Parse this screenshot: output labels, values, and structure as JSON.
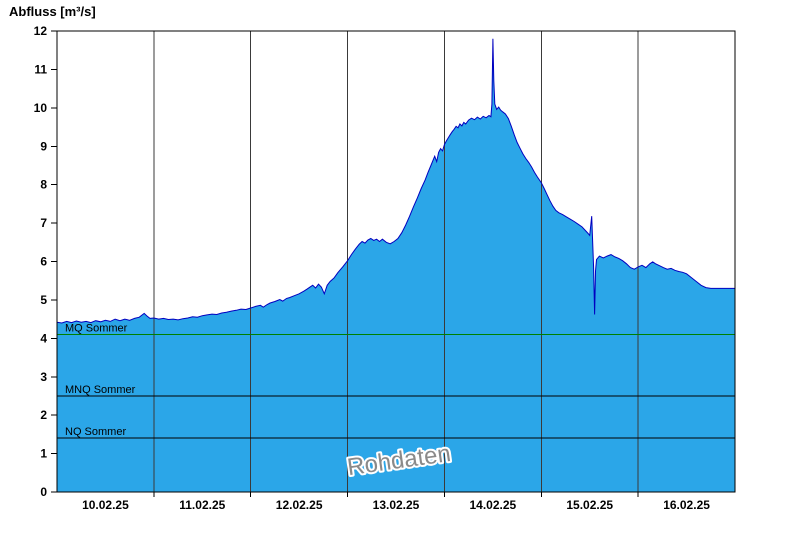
{
  "title": "Abfluss [m³/s]",
  "watermark": "Rohdaten",
  "colors": {
    "area_fill": "#2BA6E8",
    "area_stroke": "#0000C0",
    "grid": "#3a3a3a",
    "axis": "#000000",
    "mq_green": "#008000",
    "ref_black": "#000000",
    "watermark_fill": "#8a8a8a",
    "watermark_halo": "#ffffff"
  },
  "chart_data": {
    "type": "area",
    "title": "Abfluss [m³/s]",
    "ylabel": "Abfluss [m³/s]",
    "xlabel": "",
    "ylim": [
      0,
      12
    ],
    "y_ticks": [
      0,
      1,
      2,
      3,
      4,
      5,
      6,
      7,
      8,
      9,
      10,
      11,
      12
    ],
    "x_domain_days": [
      0,
      7
    ],
    "grid_days": [
      1,
      2,
      3,
      4,
      5,
      6
    ],
    "x_day_labels": [
      "10.02.25",
      "11.02.25",
      "12.02.25",
      "13.02.25",
      "14.02.25",
      "15.02.25",
      "16.02.25"
    ],
    "legend_position": "none",
    "grid": "vertical-only",
    "reference_lines": [
      {
        "label": "MQ Sommer",
        "value": 4.1,
        "color": "#008000"
      },
      {
        "label": "MNQ Sommer",
        "value": 2.5,
        "color": "#000000"
      },
      {
        "label": "NQ Sommer",
        "value": 1.4,
        "color": "#000000"
      }
    ],
    "series": [
      {
        "name": "Abfluss Rohdaten",
        "unit": "m³/s",
        "points": [
          [
            0.0,
            4.42
          ],
          [
            0.05,
            4.4
          ],
          [
            0.1,
            4.44
          ],
          [
            0.15,
            4.41
          ],
          [
            0.2,
            4.45
          ],
          [
            0.25,
            4.42
          ],
          [
            0.3,
            4.44
          ],
          [
            0.35,
            4.41
          ],
          [
            0.4,
            4.46
          ],
          [
            0.45,
            4.43
          ],
          [
            0.5,
            4.47
          ],
          [
            0.55,
            4.44
          ],
          [
            0.6,
            4.5
          ],
          [
            0.65,
            4.46
          ],
          [
            0.7,
            4.5
          ],
          [
            0.75,
            4.47
          ],
          [
            0.8,
            4.52
          ],
          [
            0.85,
            4.55
          ],
          [
            0.9,
            4.65
          ],
          [
            0.93,
            4.58
          ],
          [
            0.96,
            4.52
          ],
          [
            1.0,
            4.53
          ],
          [
            1.05,
            4.5
          ],
          [
            1.1,
            4.52
          ],
          [
            1.15,
            4.49
          ],
          [
            1.2,
            4.5
          ],
          [
            1.25,
            4.48
          ],
          [
            1.3,
            4.51
          ],
          [
            1.35,
            4.53
          ],
          [
            1.4,
            4.56
          ],
          [
            1.45,
            4.55
          ],
          [
            1.5,
            4.59
          ],
          [
            1.55,
            4.61
          ],
          [
            1.6,
            4.63
          ],
          [
            1.65,
            4.62
          ],
          [
            1.7,
            4.66
          ],
          [
            1.75,
            4.68
          ],
          [
            1.8,
            4.71
          ],
          [
            1.85,
            4.73
          ],
          [
            1.9,
            4.76
          ],
          [
            1.95,
            4.75
          ],
          [
            2.0,
            4.79
          ],
          [
            2.05,
            4.83
          ],
          [
            2.1,
            4.86
          ],
          [
            2.13,
            4.81
          ],
          [
            2.17,
            4.88
          ],
          [
            2.2,
            4.92
          ],
          [
            2.25,
            4.96
          ],
          [
            2.3,
            5.01
          ],
          [
            2.33,
            4.97
          ],
          [
            2.37,
            5.04
          ],
          [
            2.4,
            5.06
          ],
          [
            2.45,
            5.11
          ],
          [
            2.5,
            5.16
          ],
          [
            2.55,
            5.23
          ],
          [
            2.58,
            5.28
          ],
          [
            2.61,
            5.33
          ],
          [
            2.64,
            5.38
          ],
          [
            2.67,
            5.31
          ],
          [
            2.7,
            5.41
          ],
          [
            2.73,
            5.33
          ],
          [
            2.76,
            5.16
          ],
          [
            2.79,
            5.38
          ],
          [
            2.82,
            5.48
          ],
          [
            2.86,
            5.57
          ],
          [
            2.9,
            5.71
          ],
          [
            2.95,
            5.86
          ],
          [
            3.0,
            6.02
          ],
          [
            3.04,
            6.18
          ],
          [
            3.08,
            6.32
          ],
          [
            3.12,
            6.45
          ],
          [
            3.15,
            6.52
          ],
          [
            3.18,
            6.48
          ],
          [
            3.21,
            6.56
          ],
          [
            3.24,
            6.6
          ],
          [
            3.27,
            6.55
          ],
          [
            3.3,
            6.58
          ],
          [
            3.33,
            6.52
          ],
          [
            3.36,
            6.58
          ],
          [
            3.4,
            6.5
          ],
          [
            3.44,
            6.46
          ],
          [
            3.48,
            6.52
          ],
          [
            3.52,
            6.6
          ],
          [
            3.56,
            6.75
          ],
          [
            3.6,
            6.95
          ],
          [
            3.64,
            7.18
          ],
          [
            3.68,
            7.42
          ],
          [
            3.72,
            7.65
          ],
          [
            3.76,
            7.9
          ],
          [
            3.8,
            8.12
          ],
          [
            3.83,
            8.32
          ],
          [
            3.86,
            8.5
          ],
          [
            3.88,
            8.62
          ],
          [
            3.9,
            8.74
          ],
          [
            3.92,
            8.6
          ],
          [
            3.94,
            8.84
          ],
          [
            3.96,
            8.94
          ],
          [
            3.98,
            8.88
          ],
          [
            4.0,
            9.04
          ],
          [
            4.02,
            9.14
          ],
          [
            4.04,
            9.22
          ],
          [
            4.06,
            9.3
          ],
          [
            4.08,
            9.38
          ],
          [
            4.1,
            9.44
          ],
          [
            4.12,
            9.52
          ],
          [
            4.14,
            9.48
          ],
          [
            4.16,
            9.58
          ],
          [
            4.18,
            9.53
          ],
          [
            4.2,
            9.62
          ],
          [
            4.22,
            9.58
          ],
          [
            4.25,
            9.68
          ],
          [
            4.28,
            9.73
          ],
          [
            4.31,
            9.69
          ],
          [
            4.34,
            9.76
          ],
          [
            4.37,
            9.71
          ],
          [
            4.4,
            9.78
          ],
          [
            4.43,
            9.74
          ],
          [
            4.46,
            9.8
          ],
          [
            4.48,
            9.77
          ],
          [
            4.49,
            10.1
          ],
          [
            4.5,
            11.8
          ],
          [
            4.51,
            10.7
          ],
          [
            4.52,
            10.1
          ],
          [
            4.54,
            9.96
          ],
          [
            4.56,
            10.02
          ],
          [
            4.58,
            9.94
          ],
          [
            4.6,
            9.9
          ],
          [
            4.63,
            9.84
          ],
          [
            4.66,
            9.72
          ],
          [
            4.69,
            9.52
          ],
          [
            4.72,
            9.3
          ],
          [
            4.75,
            9.1
          ],
          [
            4.78,
            8.95
          ],
          [
            4.81,
            8.8
          ],
          [
            4.84,
            8.68
          ],
          [
            4.87,
            8.58
          ],
          [
            4.9,
            8.46
          ],
          [
            4.93,
            8.32
          ],
          [
            4.96,
            8.2
          ],
          [
            5.0,
            8.05
          ],
          [
            5.03,
            7.9
          ],
          [
            5.06,
            7.74
          ],
          [
            5.09,
            7.58
          ],
          [
            5.12,
            7.44
          ],
          [
            5.15,
            7.33
          ],
          [
            5.18,
            7.27
          ],
          [
            5.22,
            7.22
          ],
          [
            5.26,
            7.16
          ],
          [
            5.3,
            7.1
          ],
          [
            5.34,
            7.04
          ],
          [
            5.38,
            6.97
          ],
          [
            5.42,
            6.9
          ],
          [
            5.45,
            6.82
          ],
          [
            5.48,
            6.74
          ],
          [
            5.5,
            6.68
          ],
          [
            5.52,
            7.18
          ],
          [
            5.53,
            6.55
          ],
          [
            5.54,
            5.85
          ],
          [
            5.55,
            4.62
          ],
          [
            5.56,
            5.75
          ],
          [
            5.57,
            6.05
          ],
          [
            5.6,
            6.14
          ],
          [
            5.64,
            6.09
          ],
          [
            5.68,
            6.14
          ],
          [
            5.72,
            6.18
          ],
          [
            5.76,
            6.12
          ],
          [
            5.8,
            6.08
          ],
          [
            5.84,
            6.02
          ],
          [
            5.88,
            5.94
          ],
          [
            5.92,
            5.84
          ],
          [
            5.96,
            5.8
          ],
          [
            6.0,
            5.86
          ],
          [
            6.04,
            5.9
          ],
          [
            6.08,
            5.84
          ],
          [
            6.12,
            5.94
          ],
          [
            6.15,
            5.99
          ],
          [
            6.18,
            5.94
          ],
          [
            6.22,
            5.89
          ],
          [
            6.26,
            5.84
          ],
          [
            6.3,
            5.8
          ],
          [
            6.34,
            5.82
          ],
          [
            6.38,
            5.77
          ],
          [
            6.42,
            5.74
          ],
          [
            6.46,
            5.72
          ],
          [
            6.5,
            5.68
          ],
          [
            6.55,
            5.58
          ],
          [
            6.6,
            5.48
          ],
          [
            6.65,
            5.38
          ],
          [
            6.7,
            5.32
          ],
          [
            6.75,
            5.3
          ],
          [
            6.85,
            5.3
          ],
          [
            7.0,
            5.3
          ]
        ]
      }
    ]
  }
}
